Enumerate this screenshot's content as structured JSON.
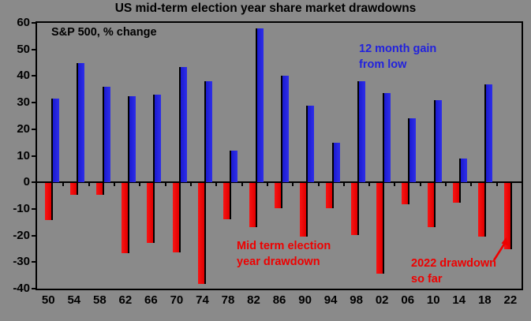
{
  "title": "US mid-term election year share market drawdowns",
  "subtitle": "S&P 500, % change",
  "annotations": {
    "gain": {
      "line1": "12 month gain",
      "line2": "from low"
    },
    "drawdown": {
      "line1": "Mid term election",
      "line2": "year drawdown"
    },
    "note2022": {
      "line1": "2022 drawdown",
      "line2": "so far"
    }
  },
  "colors": {
    "gain_bar": "#2222dd",
    "drawdown_bar": "#ee0000",
    "background": "#8a8a8a",
    "axis": "#000000"
  },
  "chart_data": {
    "type": "bar",
    "title": "US mid-term election year share market drawdowns",
    "subtitle": "S&P 500, % change",
    "categories": [
      "50",
      "54",
      "58",
      "62",
      "66",
      "70",
      "74",
      "78",
      "82",
      "86",
      "90",
      "94",
      "98",
      "02",
      "06",
      "10",
      "14",
      "18",
      "22"
    ],
    "series": [
      {
        "name": "12 month gain from low",
        "color": "#2222dd",
        "values": [
          31.5,
          45,
          36,
          32.5,
          33,
          43.5,
          38,
          12,
          58,
          40,
          29,
          15,
          38,
          33.5,
          24,
          31,
          9,
          37,
          null
        ]
      },
      {
        "name": "Mid term election year drawdown",
        "color": "#ee0000",
        "values": [
          -14,
          -4.5,
          -4.5,
          -26.5,
          -22.5,
          -26,
          -38,
          -13.5,
          -16.5,
          -9.5,
          -20,
          -9.5,
          -19.5,
          -34,
          -8,
          -16.5,
          -7.5,
          -20,
          -25
        ]
      }
    ],
    "ylim": [
      -40,
      60
    ],
    "yticks": [
      60,
      50,
      40,
      30,
      20,
      10,
      0,
      -10,
      -20,
      -30,
      -40
    ],
    "grid": false,
    "legend": "text annotations inside plot"
  }
}
